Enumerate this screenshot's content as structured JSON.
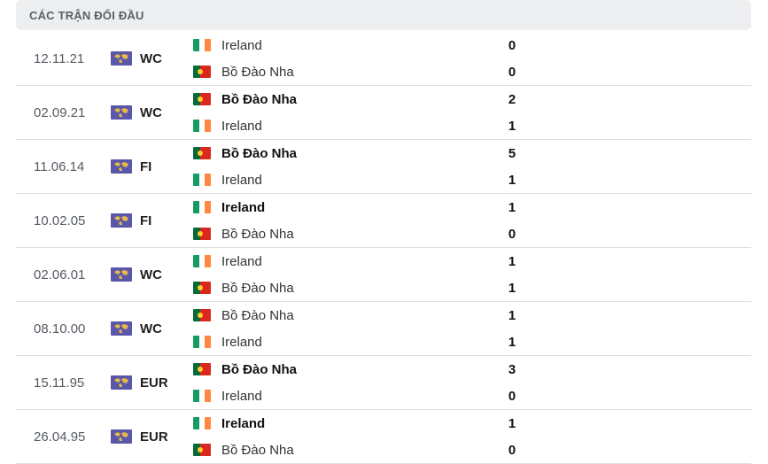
{
  "header": {
    "title": "CÁC TRẬN ĐỐI ĐẦU"
  },
  "colors": {
    "ireland_green": "#169b62",
    "ireland_orange": "#ff883e",
    "portugal_green": "#046a38",
    "portugal_red": "#da291c",
    "comp_icon_bg": "#5b57a8",
    "comp_icon_globe": "#e6b84a"
  },
  "matches": [
    {
      "date": "12.11.21",
      "competition": "WC",
      "home": {
        "name": "Ireland",
        "flag": "ireland-flag-icon",
        "score": "0",
        "winner": false
      },
      "away": {
        "name": "Bồ Đào Nha",
        "flag": "portugal-flag-icon",
        "score": "0",
        "winner": false
      }
    },
    {
      "date": "02.09.21",
      "competition": "WC",
      "home": {
        "name": "Bồ Đào Nha",
        "flag": "portugal-flag-icon",
        "score": "2",
        "winner": true
      },
      "away": {
        "name": "Ireland",
        "flag": "ireland-flag-icon",
        "score": "1",
        "winner": false
      }
    },
    {
      "date": "11.06.14",
      "competition": "FI",
      "home": {
        "name": "Bồ Đào Nha",
        "flag": "portugal-flag-icon",
        "score": "5",
        "winner": true
      },
      "away": {
        "name": "Ireland",
        "flag": "ireland-flag-icon",
        "score": "1",
        "winner": false
      }
    },
    {
      "date": "10.02.05",
      "competition": "FI",
      "home": {
        "name": "Ireland",
        "flag": "ireland-flag-icon",
        "score": "1",
        "winner": true
      },
      "away": {
        "name": "Bồ Đào Nha",
        "flag": "portugal-flag-icon",
        "score": "0",
        "winner": false
      }
    },
    {
      "date": "02.06.01",
      "competition": "WC",
      "home": {
        "name": "Ireland",
        "flag": "ireland-flag-icon",
        "score": "1",
        "winner": false
      },
      "away": {
        "name": "Bồ Đào Nha",
        "flag": "portugal-flag-icon",
        "score": "1",
        "winner": false
      }
    },
    {
      "date": "08.10.00",
      "competition": "WC",
      "home": {
        "name": "Bồ Đào Nha",
        "flag": "portugal-flag-icon",
        "score": "1",
        "winner": false
      },
      "away": {
        "name": "Ireland",
        "flag": "ireland-flag-icon",
        "score": "1",
        "winner": false
      }
    },
    {
      "date": "15.11.95",
      "competition": "EUR",
      "home": {
        "name": "Bồ Đào Nha",
        "flag": "portugal-flag-icon",
        "score": "3",
        "winner": true
      },
      "away": {
        "name": "Ireland",
        "flag": "ireland-flag-icon",
        "score": "0",
        "winner": false
      }
    },
    {
      "date": "26.04.95",
      "competition": "EUR",
      "home": {
        "name": "Ireland",
        "flag": "ireland-flag-icon",
        "score": "1",
        "winner": true
      },
      "away": {
        "name": "Bồ Đào Nha",
        "flag": "portugal-flag-icon",
        "score": "0",
        "winner": false
      }
    }
  ]
}
